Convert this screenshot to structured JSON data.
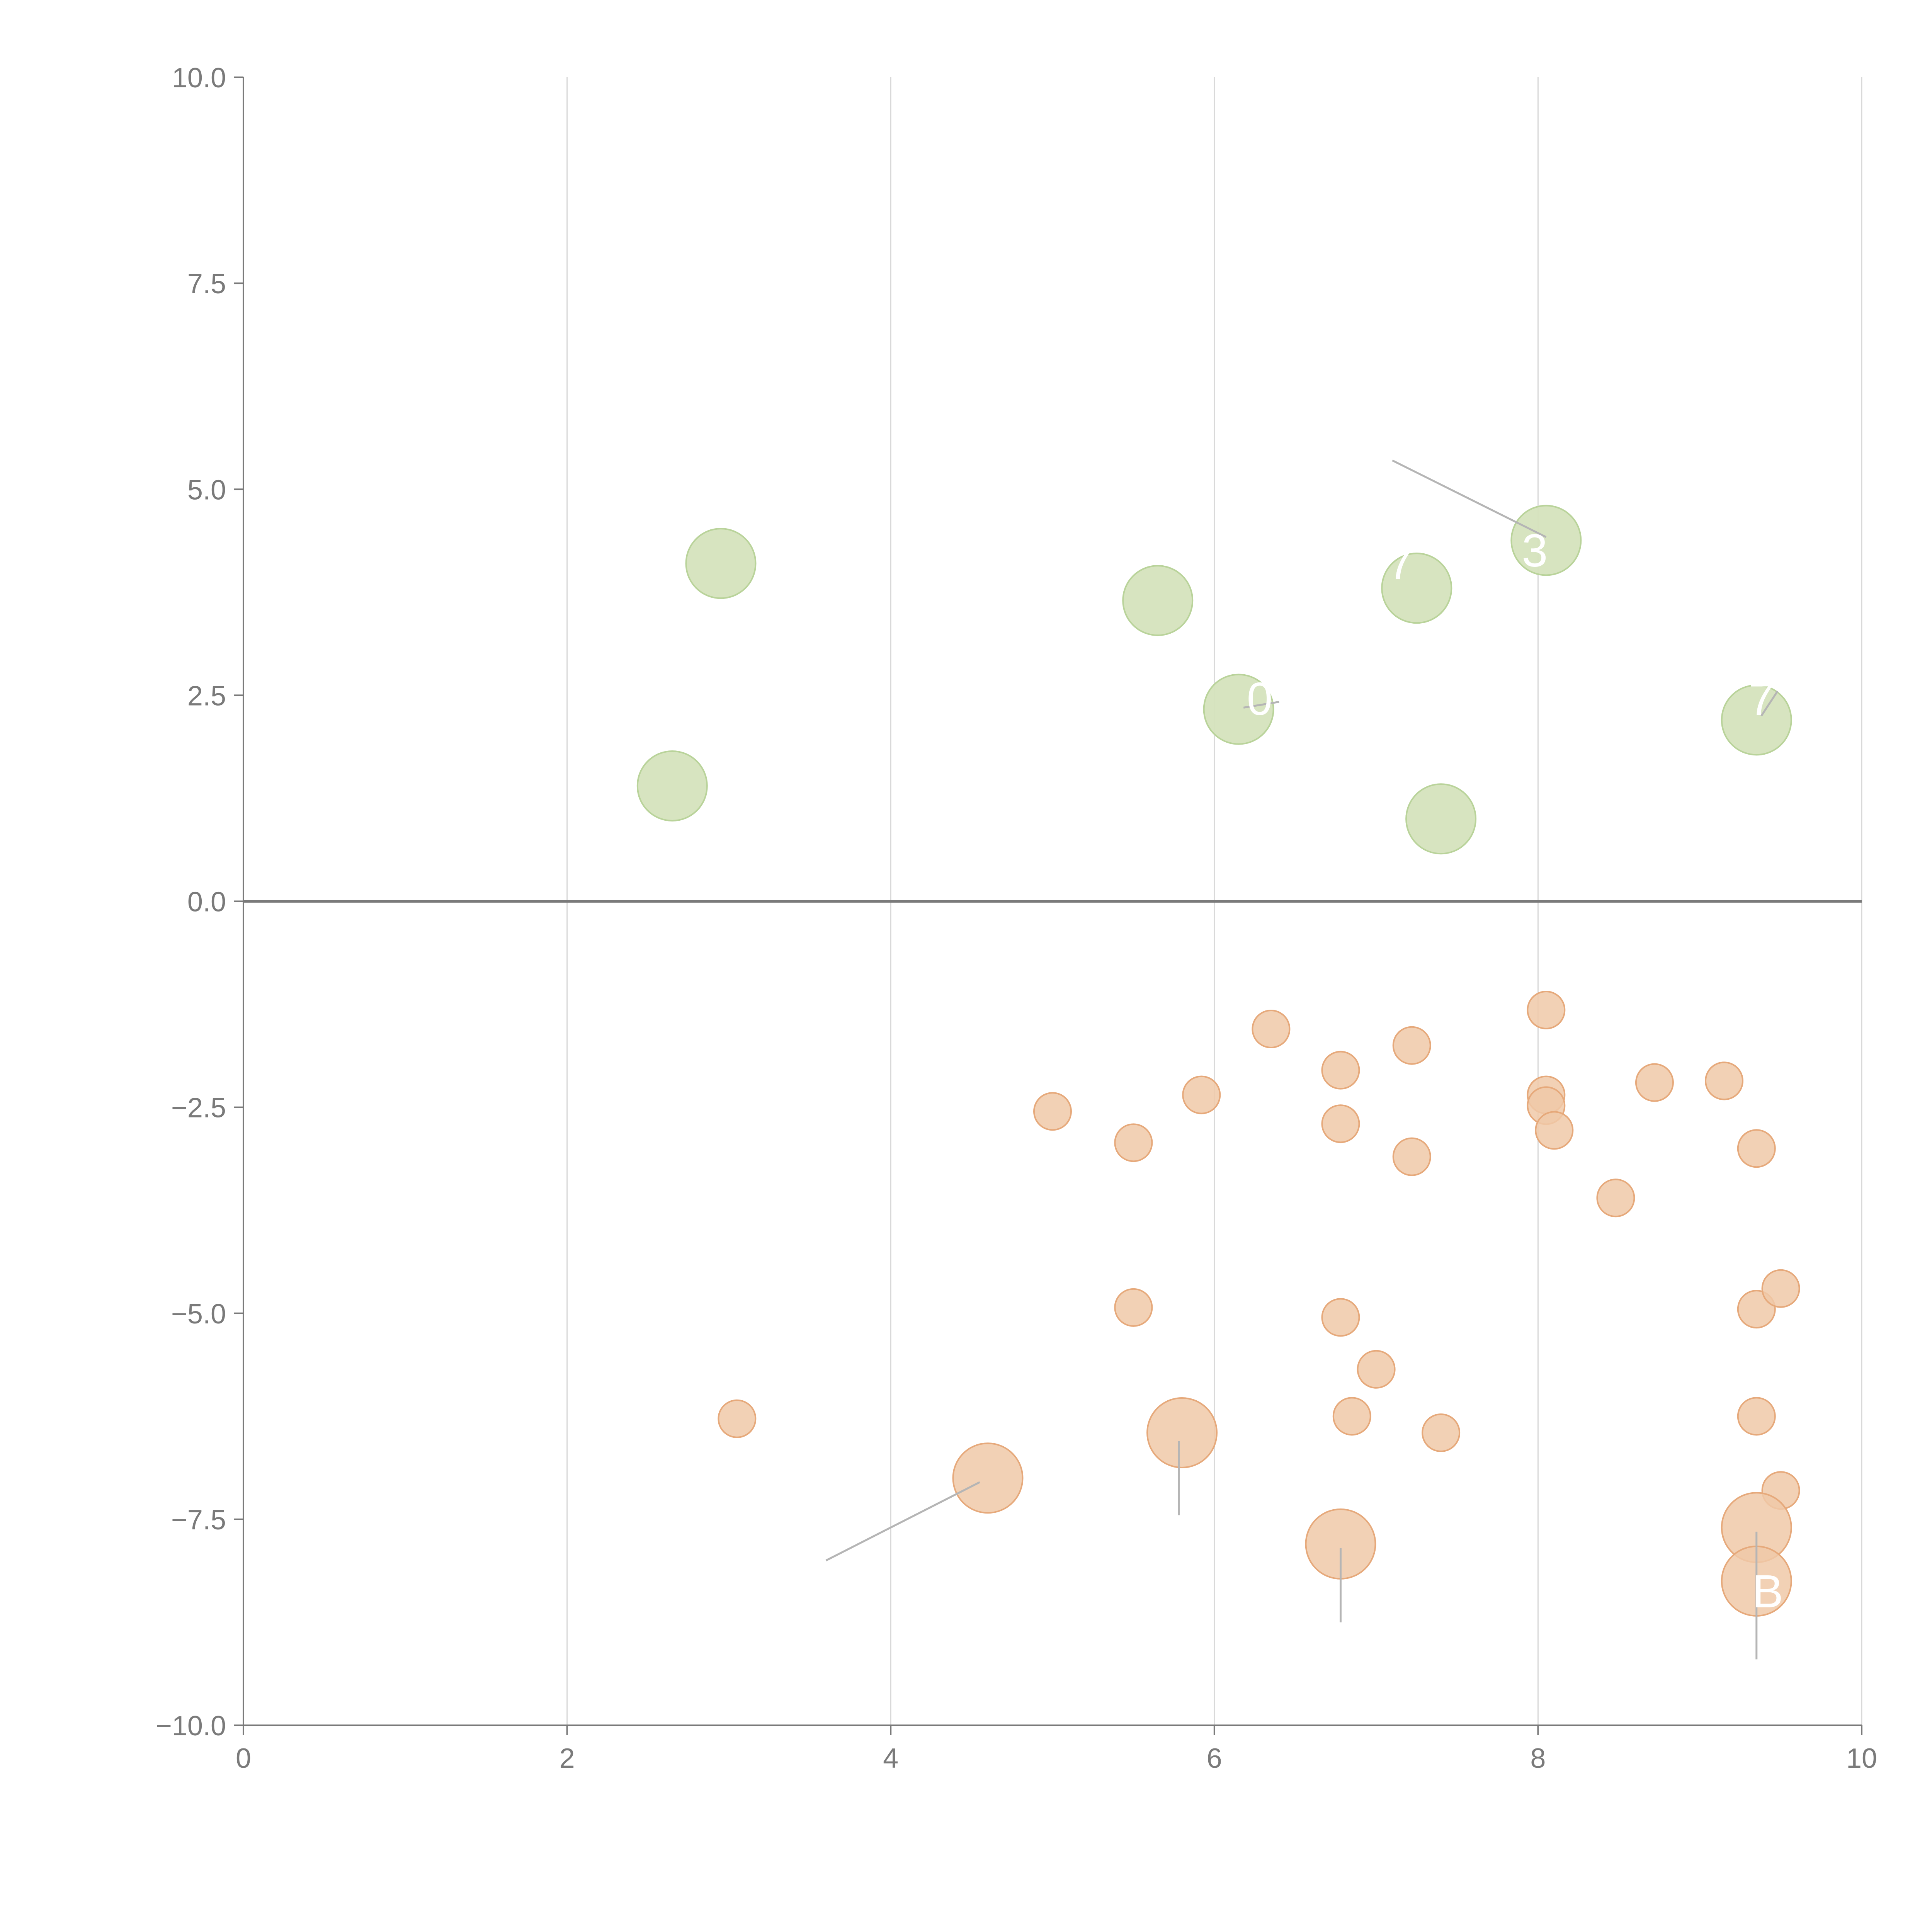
{
  "chart_data": {
    "type": "scatter",
    "title": "",
    "xlabel": "",
    "ylabel": "",
    "xlim": [
      0,
      10
    ],
    "ylim": [
      -10,
      10
    ],
    "x_ticks": [
      0,
      2,
      4,
      6,
      8,
      10
    ],
    "x_tick_labels": [
      "0",
      "2",
      "4",
      "6",
      "8",
      "10"
    ],
    "y_ticks": [
      -10,
      -7.5,
      -5,
      -2.5,
      0,
      2.5,
      5,
      7.5,
      10
    ],
    "y_tick_labels": [
      "−10.0",
      "−7.5",
      "−5.0",
      "−2.5",
      "0.0",
      "2.5",
      "5.0",
      "7.5",
      "10.0"
    ],
    "grid": {
      "vertical": true,
      "horizontal": false
    },
    "zero_line": true,
    "colors": {
      "positive_fill": "#d5e3bd",
      "positive_stroke": "#b9d39a",
      "negative_fill": "#f0c9a8",
      "negative_stroke": "#e6a97b",
      "axis": "#7a7a7a",
      "grid": "#d9d9d9",
      "leader": "#b5b5b5",
      "label": "#ffffff"
    },
    "series": [
      {
        "name": "positive",
        "points": [
          {
            "x": 2.95,
            "y": 4.1,
            "size": "large"
          },
          {
            "x": 2.65,
            "y": 1.4,
            "size": "large"
          },
          {
            "x": 5.65,
            "y": 3.65,
            "size": "large"
          },
          {
            "x": 6.15,
            "y": 2.33,
            "size": "large"
          },
          {
            "x": 7.25,
            "y": 3.8,
            "size": "large"
          },
          {
            "x": 7.4,
            "y": 1.0,
            "size": "large"
          },
          {
            "x": 8.05,
            "y": 4.38,
            "size": "large"
          },
          {
            "x": 9.35,
            "y": 2.2,
            "size": "large"
          }
        ]
      },
      {
        "name": "negative",
        "points": [
          {
            "x": 3.05,
            "y": -6.28,
            "size": "small"
          },
          {
            "x": 4.6,
            "y": -7.0,
            "size": "large"
          },
          {
            "x": 5.0,
            "y": -2.55,
            "size": "small"
          },
          {
            "x": 5.5,
            "y": -2.93,
            "size": "small"
          },
          {
            "x": 5.5,
            "y": -4.93,
            "size": "small"
          },
          {
            "x": 5.8,
            "y": -6.45,
            "size": "large"
          },
          {
            "x": 5.92,
            "y": -2.35,
            "size": "small"
          },
          {
            "x": 6.35,
            "y": -1.55,
            "size": "small"
          },
          {
            "x": 6.78,
            "y": -2.05,
            "size": "small"
          },
          {
            "x": 6.78,
            "y": -2.7,
            "size": "small"
          },
          {
            "x": 6.78,
            "y": -5.05,
            "size": "small"
          },
          {
            "x": 6.85,
            "y": -6.25,
            "size": "small"
          },
          {
            "x": 6.78,
            "y": -7.8,
            "size": "large"
          },
          {
            "x": 7.0,
            "y": -5.68,
            "size": "small"
          },
          {
            "x": 7.22,
            "y": -1.75,
            "size": "small"
          },
          {
            "x": 7.22,
            "y": -3.1,
            "size": "small"
          },
          {
            "x": 7.4,
            "y": -6.45,
            "size": "small"
          },
          {
            "x": 8.05,
            "y": -1.32,
            "size": "small"
          },
          {
            "x": 8.05,
            "y": -2.35,
            "size": "small"
          },
          {
            "x": 8.05,
            "y": -2.48,
            "size": "small"
          },
          {
            "x": 8.1,
            "y": -2.78,
            "size": "small"
          },
          {
            "x": 8.48,
            "y": -3.6,
            "size": "small"
          },
          {
            "x": 8.72,
            "y": -2.2,
            "size": "small"
          },
          {
            "x": 9.15,
            "y": -2.18,
            "size": "small"
          },
          {
            "x": 9.35,
            "y": -3.0,
            "size": "small"
          },
          {
            "x": 9.35,
            "y": -4.95,
            "size": "small"
          },
          {
            "x": 9.5,
            "y": -4.7,
            "size": "small"
          },
          {
            "x": 9.35,
            "y": -6.25,
            "size": "small"
          },
          {
            "x": 9.5,
            "y": -7.15,
            "size": "small"
          },
          {
            "x": 9.35,
            "y": -7.6,
            "size": "large"
          },
          {
            "x": 9.35,
            "y": -8.25,
            "size": "large"
          }
        ]
      }
    ],
    "callouts": [
      {
        "text": "3",
        "x": 7.98,
        "y": 4.25,
        "leader": {
          "x1": 7.1,
          "y1": 5.35,
          "x2": 8.05,
          "y2": 4.42
        }
      },
      {
        "text": "7",
        "x": 7.15,
        "y": 4.1,
        "leader": null
      },
      {
        "text": "0",
        "x": 6.28,
        "y": 2.45,
        "leader": {
          "x1": 6.18,
          "y1": 2.35,
          "x2": 6.4,
          "y2": 2.42
        }
      },
      {
        "text": "7",
        "x": 9.38,
        "y": 2.45,
        "leader": {
          "x1": 9.38,
          "y1": 2.25,
          "x2": 9.48,
          "y2": 2.55
        }
      },
      {
        "text": "B",
        "x": 9.42,
        "y": -8.38,
        "leader": {
          "x1": 9.35,
          "y1": -7.65,
          "x2": 9.35,
          "y2": -9.2
        }
      },
      {
        "text": "",
        "x": 5.78,
        "y": -6.5,
        "leader": {
          "x1": 5.78,
          "y1": -6.55,
          "x2": 5.78,
          "y2": -7.45
        }
      },
      {
        "text": "",
        "x": 6.78,
        "y": -7.9,
        "leader": {
          "x1": 6.78,
          "y1": -7.85,
          "x2": 6.78,
          "y2": -8.75
        }
      },
      {
        "text": "",
        "x": 4.55,
        "y": -7.05,
        "leader": {
          "x1": 4.55,
          "y1": -7.05,
          "x2": 3.6,
          "y2": -8.0
        }
      }
    ]
  }
}
